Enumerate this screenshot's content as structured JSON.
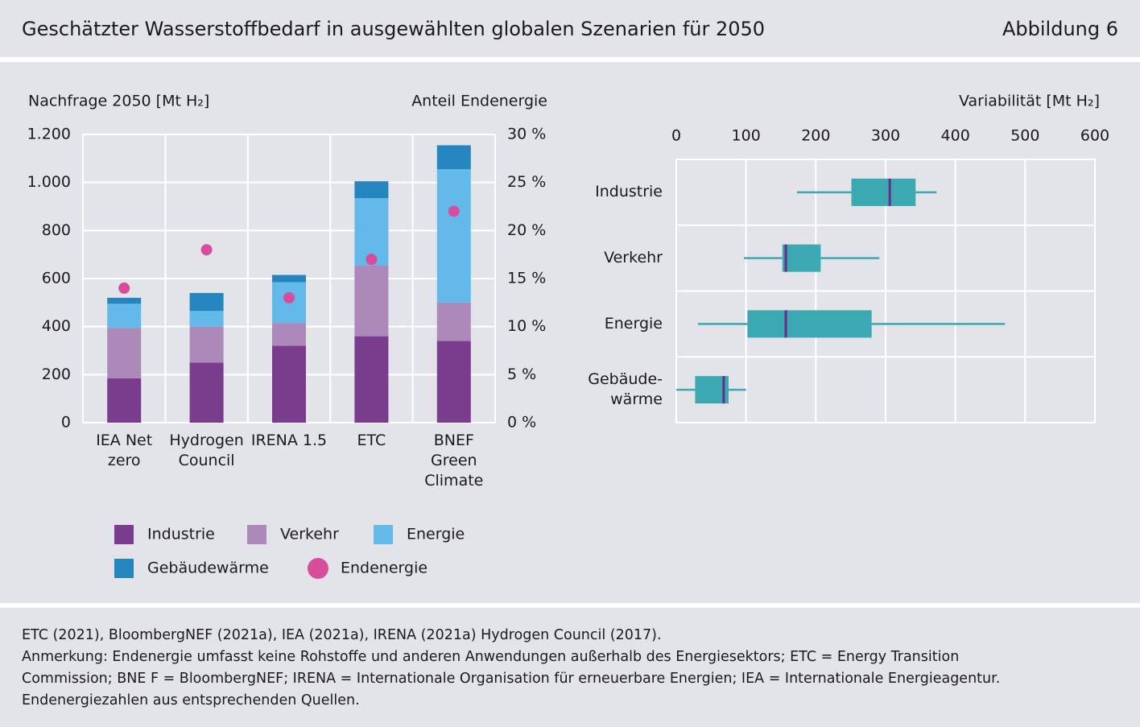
{
  "header": {
    "title": "Geschätzter Wasserstoffbedarf in ausgewählten globalen Szenarien für 2050",
    "figure": "Abbildung 6"
  },
  "chart_data": [
    {
      "type": "bar",
      "stacked": true,
      "ylabel": "Nachfrage 2050 [Mt H₂]",
      "y2label": "Anteil Endenergie",
      "categories": [
        "IEA Net\nzero",
        "Hydrogen\nCouncil",
        "IRENA 1.5",
        "ETC",
        "BNEF\nGreen\nClimate"
      ],
      "series": [
        {
          "name": "Industrie",
          "color": "#7a3d8e",
          "values": [
            185,
            250,
            320,
            360,
            340
          ]
        },
        {
          "name": "Verkehr",
          "color": "#ad89b9",
          "values": [
            210,
            150,
            95,
            295,
            160
          ]
        },
        {
          "name": "Energie",
          "color": "#63b9e9",
          "values": [
            100,
            65,
            170,
            280,
            555
          ]
        },
        {
          "name": "Gebäudewärme",
          "color": "#2585be",
          "values": [
            25,
            75,
            30,
            70,
            100
          ]
        },
        {
          "name": "Endenergie",
          "type": "scatter",
          "axis": "y2",
          "color": "#d84c9c",
          "values": [
            14,
            18,
            13,
            17,
            22
          ]
        }
      ],
      "ylim": [
        0,
        1200
      ],
      "yticks": [
        0,
        200,
        400,
        600,
        800,
        {
          "value": 1000,
          "label": "1.000"
        },
        {
          "value": 1200,
          "label": "1.200"
        }
      ],
      "y2lim": [
        0,
        30
      ],
      "y2ticks": [
        {
          "value": 0,
          "label": "0 %"
        },
        {
          "value": 5,
          "label": "5 %"
        },
        {
          "value": 10,
          "label": "10 %"
        },
        {
          "value": 15,
          "label": "15 %"
        },
        {
          "value": 20,
          "label": "20 %"
        },
        {
          "value": 25,
          "label": "25 %"
        },
        {
          "value": 30,
          "label": "30 %"
        }
      ],
      "grid": true
    },
    {
      "type": "box",
      "orientation": "horizontal",
      "xlabel": "Variabilität [Mt H₂]",
      "categories": [
        "Industrie",
        "Verkehr",
        "Energie",
        "Gebäude-\nwärme"
      ],
      "min": [
        173,
        97,
        31,
        0
      ],
      "q1": [
        251,
        152,
        102,
        27
      ],
      "median": [
        306,
        157,
        157,
        68
      ],
      "q3": [
        343,
        207,
        280,
        75
      ],
      "max": [
        373,
        291,
        471,
        100
      ],
      "color": "#3aa9b1",
      "median_color": "#6a2c8c",
      "xlim": [
        0,
        600
      ],
      "xticks": [
        0,
        100,
        200,
        300,
        400,
        500,
        600
      ],
      "grid": true
    }
  ],
  "footer": {
    "lines": [
      "ETC (2021), BloombergNEF (2021a), IEA (2021a), IRENA (2021a) Hydrogen Council (2017).",
      "Anmerkung: Endenergie umfasst keine Rohstoffe und anderen Anwendungen außerhalb des Energiesektors; ETC = Energy Transition",
      "Commission; BNE F = BloombergNEF; IRENA = Internationale Organisation für erneuerbare Energien; IEA = Internationale Energieagentur.",
      "Endenergiezahlen aus entsprechenden Quellen."
    ]
  }
}
